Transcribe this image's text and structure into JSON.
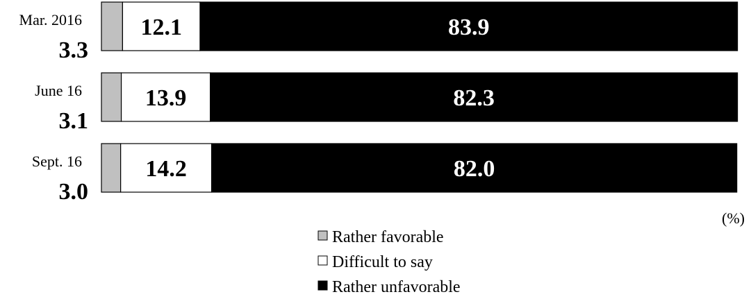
{
  "chart_data": {
    "type": "bar",
    "orientation": "horizontal",
    "stacked": true,
    "unit": "(%)",
    "xlim": [
      0,
      100
    ],
    "categories": [
      "Mar. 2016",
      "June 16",
      "Sept. 16"
    ],
    "series": [
      {
        "name": "Rather favorable",
        "values": [
          3.3,
          3.1,
          3.0
        ],
        "color": "#c0c0c0"
      },
      {
        "name": "Difficult to say",
        "values": [
          12.1,
          13.9,
          14.2
        ],
        "color": "#ffffff"
      },
      {
        "name": "Rather unfavorable",
        "values": [
          83.9,
          82.3,
          82.0
        ],
        "color": "#000000"
      }
    ],
    "value_labels": [
      [
        "3.3",
        "12.1",
        "83.9"
      ],
      [
        "3.1",
        "13.9",
        "82.3"
      ],
      [
        "3.0",
        "14.2",
        "82.0"
      ]
    ],
    "legend_position": "bottom-center",
    "grid": false
  }
}
